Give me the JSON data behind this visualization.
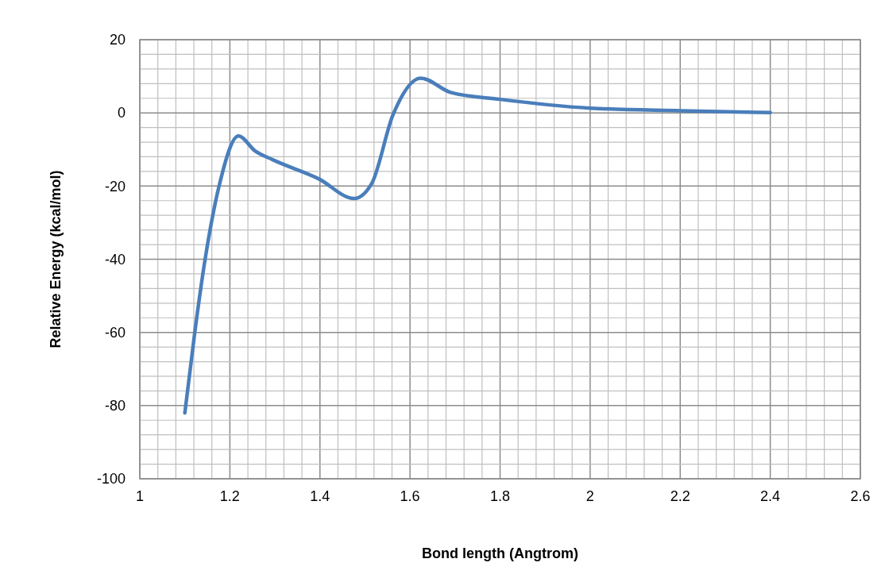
{
  "chart_data": {
    "type": "line",
    "xlabel": "Bond length (Angtrom)",
    "ylabel": "Relative Energy (kcal/mol)",
    "x": [
      1.1,
      1.122,
      1.145,
      1.176,
      1.219,
      1.256,
      1.295,
      1.397,
      1.476,
      1.515,
      1.562,
      1.624,
      1.69,
      1.8,
      2.0,
      2.2,
      2.4
    ],
    "series": [
      {
        "color": "#4a7ebb",
        "values": [
          -82,
          -60,
          -40,
          -20,
          -6.3,
          -10.4,
          -12.8,
          -18,
          -23.4,
          -19.3,
          -0.6,
          9.5,
          5.6,
          3.7,
          1.3,
          0.6,
          0.1
        ]
      }
    ],
    "xlim": [
      1,
      2.6
    ],
    "ylim": [
      -100,
      20
    ],
    "xticks": [
      1,
      {
        "value": 1.04,
        "label": null
      },
      {
        "value": 1.08,
        "label": null
      },
      {
        "value": 1.12,
        "label": null
      },
      {
        "value": 1.16,
        "label": null
      },
      1.2,
      {
        "value": 1.24,
        "label": null
      },
      {
        "value": 1.28,
        "label": null
      },
      {
        "value": 1.32,
        "label": null
      },
      {
        "value": 1.36,
        "label": null
      },
      1.4,
      {
        "value": 1.44,
        "label": null
      },
      {
        "value": 1.48,
        "label": null
      },
      {
        "value": 1.52,
        "label": null
      },
      {
        "value": 1.56,
        "label": null
      },
      1.6,
      {
        "value": 1.64,
        "label": null
      },
      {
        "value": 1.68,
        "label": null
      },
      {
        "value": 1.72,
        "label": null
      },
      {
        "value": 1.76,
        "label": null
      },
      1.8,
      {
        "value": 1.84,
        "label": null
      },
      {
        "value": 1.88,
        "label": null
      },
      {
        "value": 1.92,
        "label": null
      },
      {
        "value": 1.96,
        "label": null
      },
      2,
      {
        "value": 2.04,
        "label": null
      },
      {
        "value": 2.08,
        "label": null
      },
      {
        "value": 2.12,
        "label": null
      },
      {
        "value": 2.16,
        "label": null
      },
      2.2,
      {
        "value": 2.24,
        "label": null
      },
      {
        "value": 2.28,
        "label": null
      },
      {
        "value": 2.32,
        "label": null
      },
      {
        "value": 2.36,
        "label": null
      },
      2.4,
      {
        "value": 2.44,
        "label": null
      },
      {
        "value": 2.48,
        "label": null
      },
      {
        "value": 2.52,
        "label": null
      },
      {
        "value": 2.56,
        "label": null
      },
      2.6
    ],
    "yticks": [
      -100,
      {
        "value": -96,
        "label": null
      },
      {
        "value": -92,
        "label": null
      },
      {
        "value": -88,
        "label": null
      },
      {
        "value": -84,
        "label": null
      },
      -80,
      {
        "value": -76,
        "label": null
      },
      {
        "value": -72,
        "label": null
      },
      {
        "value": -68,
        "label": null
      },
      {
        "value": -64,
        "label": null
      },
      -60,
      {
        "value": -56,
        "label": null
      },
      {
        "value": -52,
        "label": null
      },
      {
        "value": -48,
        "label": null
      },
      {
        "value": -44,
        "label": null
      },
      -40,
      {
        "value": -36,
        "label": null
      },
      {
        "value": -32,
        "label": null
      },
      {
        "value": -28,
        "label": null
      },
      {
        "value": -24,
        "label": null
      },
      -20,
      {
        "value": -16,
        "label": null
      },
      {
        "value": -12,
        "label": null
      },
      {
        "value": -8,
        "label": null
      },
      {
        "value": -4,
        "label": null
      },
      0,
      {
        "value": 4,
        "label": null
      },
      {
        "value": 8,
        "label": null
      },
      {
        "value": 12,
        "label": null
      },
      {
        "value": 16,
        "label": null
      },
      20
    ],
    "grid": true,
    "marker": "none",
    "line_style": "solid"
  }
}
